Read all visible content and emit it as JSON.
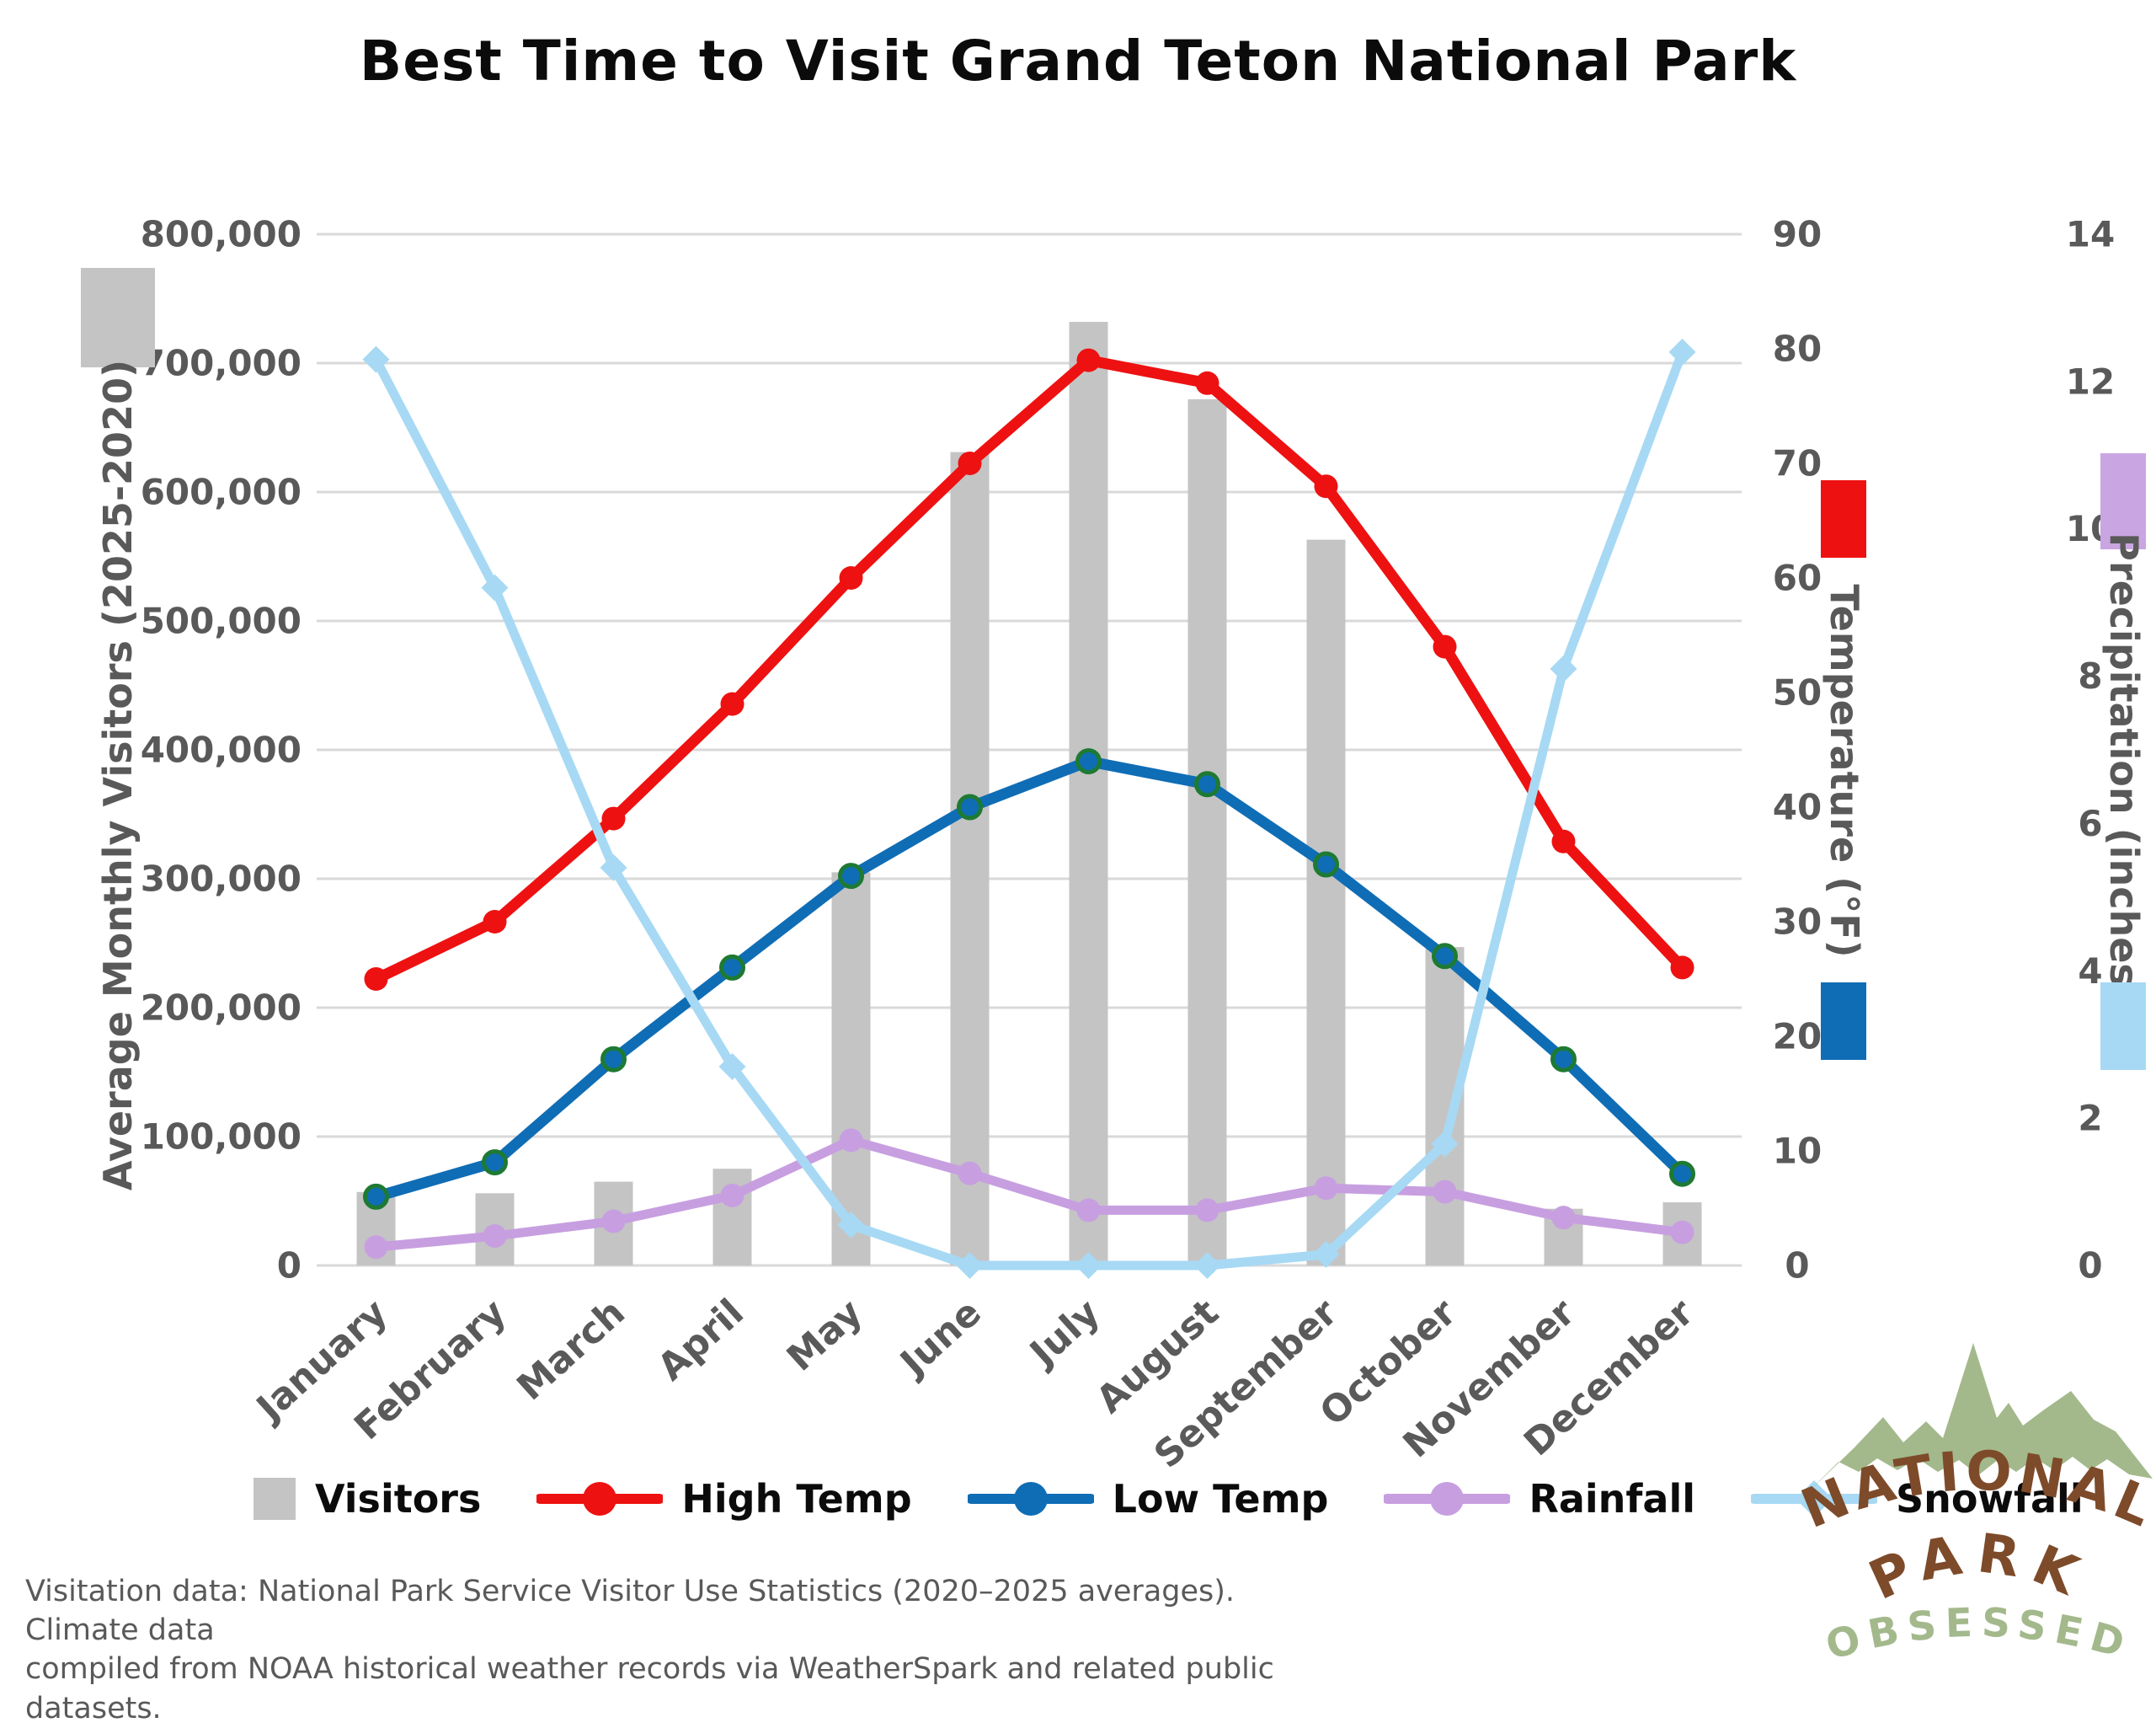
{
  "title": "Best Time to Visit Grand Teton National Park",
  "y_axis_left": {
    "title": "Average Monthly Visitors (2025-2020)",
    "tick_labels": [
      "0",
      "100,000",
      "200,000",
      "300,000",
      "400,000",
      "500,000",
      "600,000",
      "700,000",
      "800,000"
    ]
  },
  "y_axis_temperature": {
    "title": "Temperature (°F)",
    "tick_labels": [
      "0",
      "10",
      "20",
      "30",
      "40",
      "50",
      "60",
      "70",
      "80",
      "90"
    ]
  },
  "y_axis_precipitation": {
    "title": "Precipitation (inches)",
    "tick_labels": [
      "0",
      "2",
      "4",
      "6",
      "8",
      "10",
      "12",
      "14"
    ]
  },
  "colors": {
    "bar": "#c4c4c4",
    "high_temp": "#ee1111",
    "low_temp": "#0f6db5",
    "low_temp_marker_edge": "#1e7a33",
    "rainfall": "#c79fe0",
    "snowfall": "#a7d9f4",
    "gridline": "#d9d9d9",
    "axis_text": "#595959",
    "logo_green": "#a3b98c",
    "logo_brown": "#7d4b2a"
  },
  "chart_data": {
    "type": "combo-bar-line",
    "title": "Best Time to Visit Grand Teton National Park",
    "categories": [
      "January",
      "February",
      "March",
      "April",
      "May",
      "June",
      "July",
      "August",
      "September",
      "October",
      "November",
      "December"
    ],
    "series": [
      {
        "name": "Visitors",
        "type": "bar",
        "axis": "visitors",
        "values": [
          57000,
          56000,
          65000,
          75000,
          305000,
          631000,
          732000,
          672000,
          563000,
          247000,
          44000,
          49000
        ]
      },
      {
        "name": "High Temp",
        "type": "line",
        "marker": "circle",
        "axis": "temperature_f",
        "values": [
          25,
          30,
          39,
          49,
          60,
          70,
          79,
          77,
          68,
          54,
          37,
          26
        ]
      },
      {
        "name": "Low Temp",
        "type": "line",
        "marker": "circle",
        "axis": "temperature_f",
        "values": [
          6,
          9,
          18,
          26,
          34,
          40,
          44,
          42,
          35,
          27,
          18,
          8
        ]
      },
      {
        "name": "Rainfall",
        "type": "line",
        "marker": "circle",
        "axis": "precip_inches",
        "values": [
          0.25,
          0.4,
          0.6,
          0.95,
          1.7,
          1.25,
          0.75,
          0.75,
          1.05,
          1.0,
          0.65,
          0.45
        ]
      },
      {
        "name": "Snowfall",
        "type": "line",
        "marker": "diamond",
        "axis": "precip_inches",
        "values": [
          12.3,
          9.2,
          5.4,
          2.7,
          0.55,
          0,
          0,
          0,
          0.15,
          1.65,
          8.1,
          12.4
        ]
      }
    ],
    "axis_ranges": {
      "visitors": [
        0,
        800000
      ],
      "temperature_f": [
        0,
        90
      ],
      "precip_inches": [
        0,
        14
      ]
    },
    "grid": "horizontal gridlines every 100,000 visitors",
    "legend_position": "bottom"
  },
  "legend": {
    "items": [
      {
        "label": "Visitors",
        "marker": "square",
        "color": "#c4c4c4"
      },
      {
        "label": "High Temp",
        "marker": "line-circle",
        "color": "#ee1111"
      },
      {
        "label": "Low Temp",
        "marker": "line-circle",
        "color": "#0f6db5"
      },
      {
        "label": "Rainfall",
        "marker": "line-circle",
        "color": "#c79fe0"
      },
      {
        "label": "Snowfall",
        "marker": "line-diamond",
        "color": "#a7d9f4"
      }
    ]
  },
  "footnote": {
    "line1": "Visitation data: National Park Service Visitor Use Statistics (2020–2025 averages). Climate data",
    "line2": "compiled from NOAA historical weather records via WeatherSpark and related public datasets."
  },
  "logo": {
    "line1": "NATIONAL",
    "line2": "PARK",
    "line3": "OBSESSED"
  }
}
